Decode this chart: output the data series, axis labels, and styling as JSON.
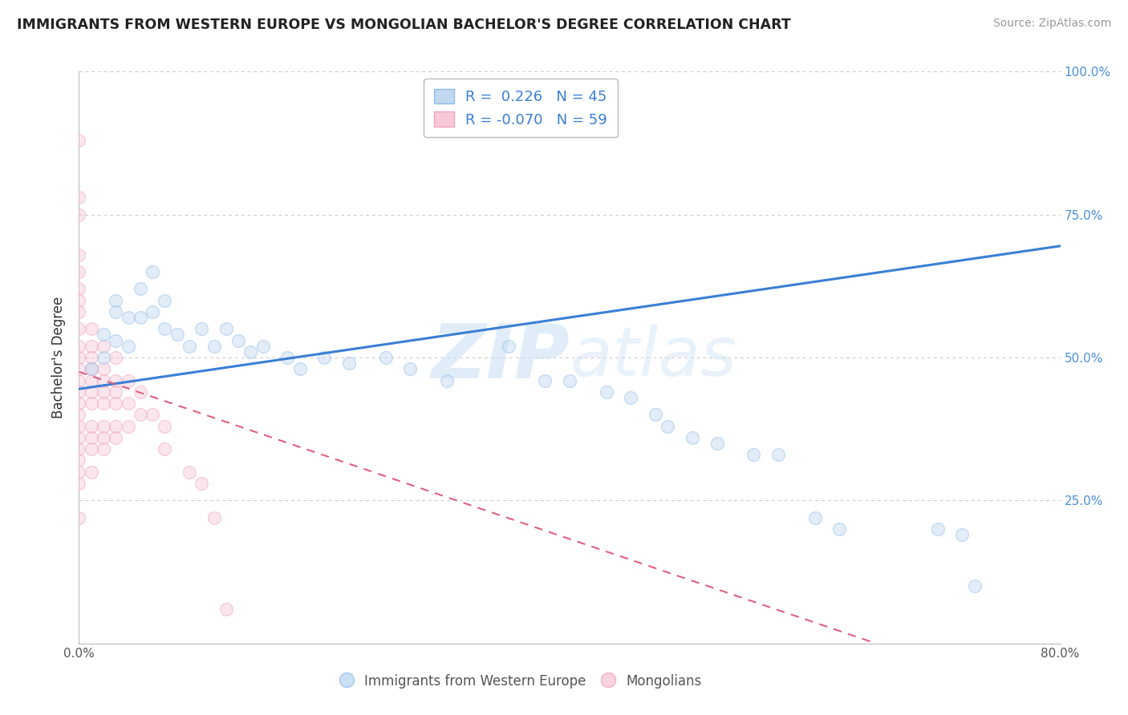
{
  "title": "IMMIGRANTS FROM WESTERN EUROPE VS MONGOLIAN BACHELOR'S DEGREE CORRELATION CHART",
  "source": "Source: ZipAtlas.com",
  "ylabel": "Bachelor's Degree",
  "xlim": [
    0.0,
    0.8
  ],
  "ylim": [
    0.0,
    1.0
  ],
  "legend_entries": [
    {
      "label": "Immigrants from Western Europe",
      "color": "#a8c8f0",
      "R": "0.226",
      "N": "45"
    },
    {
      "label": "Mongolians",
      "color": "#f0a8c0",
      "R": "-0.070",
      "N": "59"
    }
  ],
  "blue_scatter": [
    [
      0.01,
      0.48
    ],
    [
      0.02,
      0.54
    ],
    [
      0.02,
      0.5
    ],
    [
      0.03,
      0.6
    ],
    [
      0.03,
      0.58
    ],
    [
      0.03,
      0.53
    ],
    [
      0.04,
      0.57
    ],
    [
      0.04,
      0.52
    ],
    [
      0.05,
      0.62
    ],
    [
      0.05,
      0.57
    ],
    [
      0.06,
      0.65
    ],
    [
      0.06,
      0.58
    ],
    [
      0.07,
      0.6
    ],
    [
      0.07,
      0.55
    ],
    [
      0.08,
      0.54
    ],
    [
      0.09,
      0.52
    ],
    [
      0.1,
      0.55
    ],
    [
      0.11,
      0.52
    ],
    [
      0.12,
      0.55
    ],
    [
      0.13,
      0.53
    ],
    [
      0.14,
      0.51
    ],
    [
      0.15,
      0.52
    ],
    [
      0.17,
      0.5
    ],
    [
      0.18,
      0.48
    ],
    [
      0.2,
      0.5
    ],
    [
      0.22,
      0.49
    ],
    [
      0.25,
      0.5
    ],
    [
      0.27,
      0.48
    ],
    [
      0.3,
      0.46
    ],
    [
      0.35,
      0.52
    ],
    [
      0.38,
      0.46
    ],
    [
      0.4,
      0.46
    ],
    [
      0.43,
      0.44
    ],
    [
      0.45,
      0.43
    ],
    [
      0.47,
      0.4
    ],
    [
      0.48,
      0.38
    ],
    [
      0.5,
      0.36
    ],
    [
      0.52,
      0.35
    ],
    [
      0.55,
      0.33
    ],
    [
      0.57,
      0.33
    ],
    [
      0.6,
      0.22
    ],
    [
      0.62,
      0.2
    ],
    [
      0.7,
      0.2
    ],
    [
      0.72,
      0.19
    ],
    [
      0.73,
      0.1
    ]
  ],
  "pink_scatter": [
    [
      0.0,
      0.88
    ],
    [
      0.0,
      0.78
    ],
    [
      0.0,
      0.75
    ],
    [
      0.0,
      0.68
    ],
    [
      0.0,
      0.65
    ],
    [
      0.0,
      0.62
    ],
    [
      0.0,
      0.6
    ],
    [
      0.0,
      0.58
    ],
    [
      0.0,
      0.55
    ],
    [
      0.0,
      0.52
    ],
    [
      0.0,
      0.5
    ],
    [
      0.0,
      0.48
    ],
    [
      0.0,
      0.46
    ],
    [
      0.0,
      0.44
    ],
    [
      0.0,
      0.42
    ],
    [
      0.0,
      0.4
    ],
    [
      0.0,
      0.38
    ],
    [
      0.0,
      0.36
    ],
    [
      0.0,
      0.34
    ],
    [
      0.0,
      0.32
    ],
    [
      0.0,
      0.3
    ],
    [
      0.0,
      0.28
    ],
    [
      0.0,
      0.22
    ],
    [
      0.01,
      0.55
    ],
    [
      0.01,
      0.52
    ],
    [
      0.01,
      0.5
    ],
    [
      0.01,
      0.48
    ],
    [
      0.01,
      0.46
    ],
    [
      0.01,
      0.44
    ],
    [
      0.01,
      0.42
    ],
    [
      0.01,
      0.38
    ],
    [
      0.01,
      0.36
    ],
    [
      0.01,
      0.34
    ],
    [
      0.01,
      0.3
    ],
    [
      0.02,
      0.52
    ],
    [
      0.02,
      0.48
    ],
    [
      0.02,
      0.46
    ],
    [
      0.02,
      0.44
    ],
    [
      0.02,
      0.42
    ],
    [
      0.02,
      0.38
    ],
    [
      0.02,
      0.36
    ],
    [
      0.02,
      0.34
    ],
    [
      0.03,
      0.5
    ],
    [
      0.03,
      0.46
    ],
    [
      0.03,
      0.44
    ],
    [
      0.03,
      0.42
    ],
    [
      0.03,
      0.38
    ],
    [
      0.03,
      0.36
    ],
    [
      0.04,
      0.46
    ],
    [
      0.04,
      0.42
    ],
    [
      0.04,
      0.38
    ],
    [
      0.05,
      0.44
    ],
    [
      0.05,
      0.4
    ],
    [
      0.06,
      0.4
    ],
    [
      0.07,
      0.38
    ],
    [
      0.07,
      0.34
    ],
    [
      0.09,
      0.3
    ],
    [
      0.1,
      0.28
    ],
    [
      0.11,
      0.22
    ],
    [
      0.12,
      0.06
    ]
  ],
  "blue_line": [
    [
      0.0,
      0.445
    ],
    [
      0.8,
      0.695
    ]
  ],
  "pink_line": [
    [
      0.0,
      0.475
    ],
    [
      0.65,
      0.0
    ]
  ],
  "watermark_line1": "ZIP",
  "watermark_line2": "atlas",
  "scatter_size": 130,
  "scatter_alpha": 0.45,
  "blue_color": "#90bce8",
  "pink_color": "#f0a0bc",
  "blue_fill_color": "#c0d8f0",
  "pink_fill_color": "#f8c8d8",
  "blue_line_color": "#3a7fd5",
  "pink_line_color": "#e06080",
  "background_color": "#ffffff",
  "grid_color": "#c8c8c8"
}
